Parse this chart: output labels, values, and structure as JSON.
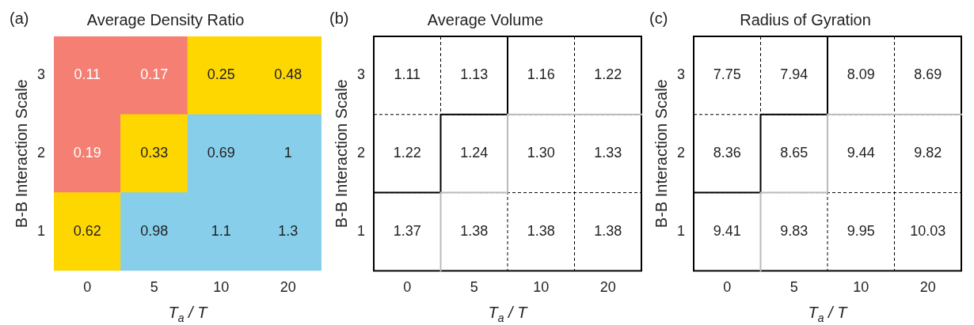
{
  "chart_data": [
    {
      "type": "heatmap",
      "title": "Average Density Ratio",
      "xlabel": "T$_{a}$ / T",
      "ylabel": "B-B Interaction Scale",
      "annotations": [
        "(a)"
      ],
      "categories": [
        "0",
        "5",
        "10",
        "20"
      ],
      "y_categories": [
        "3",
        "2",
        "1"
      ],
      "cells": [
        [
          0.11,
          0.17,
          0.25,
          0.48
        ],
        [
          0.19,
          0.33,
          0.69,
          1
        ],
        [
          0.62,
          0.98,
          1.1,
          1.3
        ]
      ],
      "data_labels": true,
      "colors": [
        [
          "#f47f72",
          "#f47f72",
          "#ffd700",
          "#ffd700"
        ],
        [
          "#f47f72",
          "#ffd700",
          "#87ceeb",
          "#87ceeb"
        ],
        [
          "#ffd700",
          "#87ceeb",
          "#87ceeb",
          "#87ceeb"
        ]
      ]
    },
    {
      "type": "heatmap",
      "title": "Average Volume",
      "xlabel": "T$_{a}$ / T",
      "ylabel": "B-B Interaction Scale",
      "annotations": [
        "(b)"
      ],
      "categories": [
        "0",
        "5",
        "10",
        "20"
      ],
      "y_categories": [
        "3",
        "2",
        "1"
      ],
      "cells": [
        [
          1.11,
          1.13,
          1.16,
          1.22
        ],
        [
          1.22,
          1.24,
          1.3,
          1.33
        ],
        [
          1.37,
          1.38,
          1.38,
          1.38
        ]
      ],
      "cell_labels": [
        [
          "1.11",
          "1.13",
          "1.16",
          "1.22"
        ],
        [
          "1.22",
          "1.24",
          "1.30",
          "1.33"
        ],
        [
          "1.37",
          "1.38",
          "1.38",
          "1.38"
        ]
      ],
      "grid": true
    },
    {
      "type": "heatmap",
      "title": "Radius of Gyration",
      "xlabel": "T$_{a}$ / T",
      "ylabel": "B-B Interaction Scale",
      "annotations": [
        "(c)"
      ],
      "categories": [
        "0",
        "5",
        "10",
        "20"
      ],
      "y_categories": [
        "3",
        "2",
        "1"
      ],
      "cells": [
        [
          7.75,
          7.94,
          8.09,
          8.69
        ],
        [
          8.36,
          8.65,
          9.44,
          9.82
        ],
        [
          9.41,
          9.83,
          9.95,
          10.03
        ]
      ],
      "data_labels": true,
      "grid": true
    }
  ]
}
